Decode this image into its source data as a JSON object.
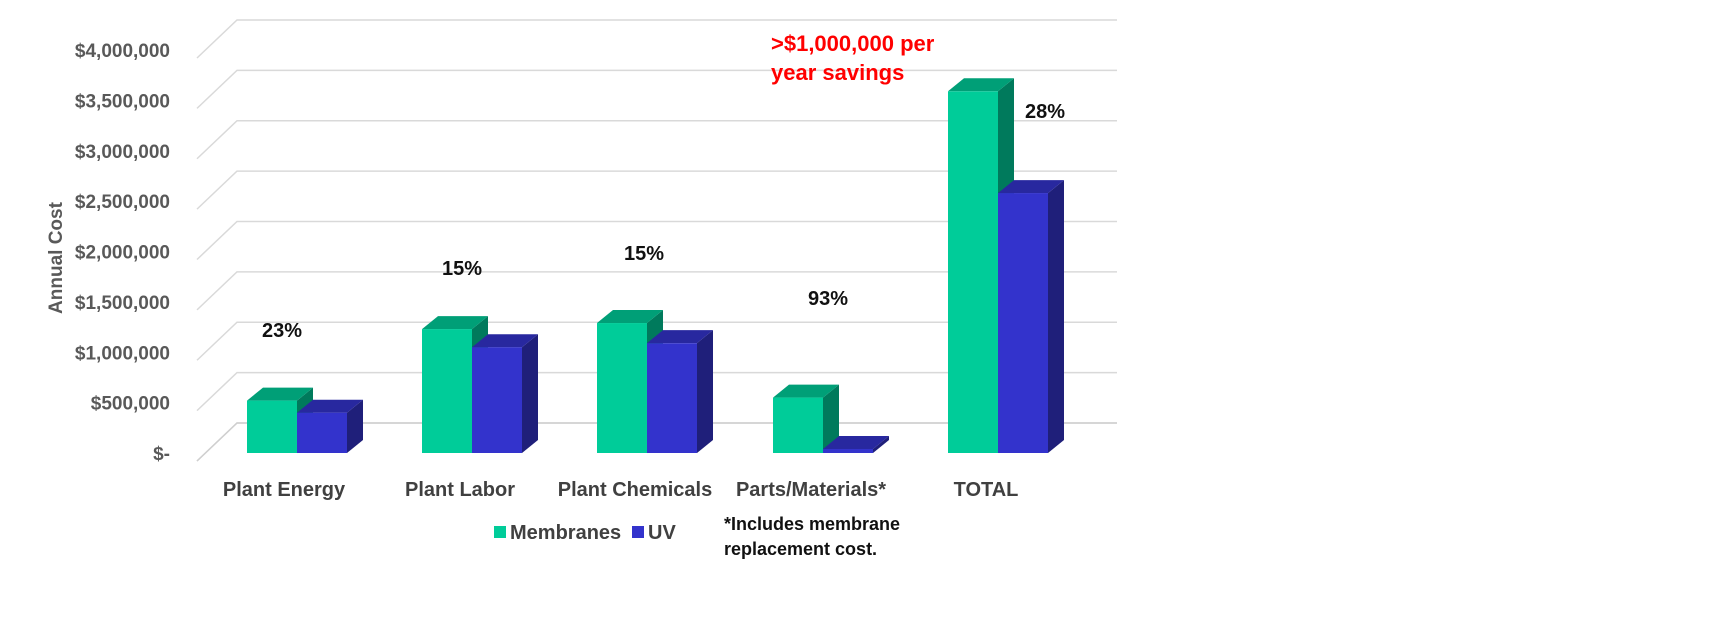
{
  "chart_data": {
    "type": "bar",
    "title": "",
    "ylabel": "Annual Cost",
    "xlabel": "",
    "ylim": [
      0,
      4000000
    ],
    "grid": true,
    "legend_position": "bottom",
    "y_tick_values": [
      0,
      500000,
      1000000,
      1500000,
      2000000,
      2500000,
      3000000,
      3500000,
      4000000
    ],
    "y_tick_labels": [
      "$-",
      "$500,000",
      "$1,000,000",
      "$1,500,000",
      "$2,000,000",
      "$2,500,000",
      "$3,000,000",
      "$3,500,000",
      "$4,000,000"
    ],
    "categories": [
      "Plant Energy",
      "Plant Labor",
      "Plant Chemicals",
      "Parts/Materials*",
      "TOTAL"
    ],
    "series": [
      {
        "name": "Membranes",
        "color": "#00cc99",
        "values": [
          520000,
          1230000,
          1290000,
          550000,
          3590000
        ]
      },
      {
        "name": "UV",
        "color": "#3333cc",
        "values": [
          400000,
          1050000,
          1090000,
          40000,
          2580000
        ]
      }
    ],
    "percent_labels": [
      "23%",
      "15%",
      "15%",
      "93%",
      "28%"
    ],
    "annotation": {
      "lines": [
        ">$1,000,000 per",
        "year savings"
      ],
      "color": "#ff0000"
    },
    "footnote": {
      "lines": [
        "*Includes membrane",
        "replacement cost."
      ]
    }
  }
}
